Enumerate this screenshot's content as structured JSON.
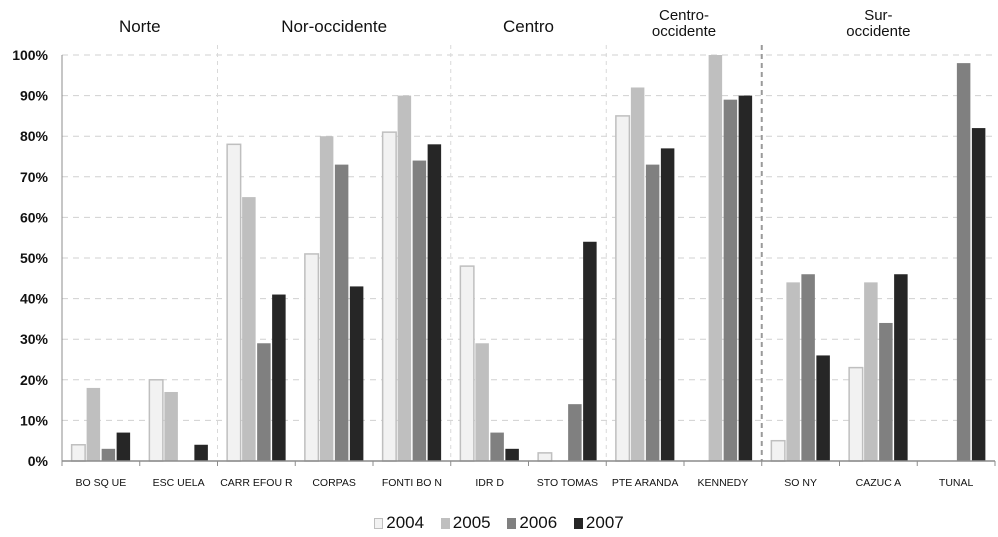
{
  "chart_data": {
    "type": "bar",
    "regions": [
      {
        "label": "Norte",
        "stations": [
          "BOSQUE",
          "ESCUELA"
        ]
      },
      {
        "label": "Nor-occidente",
        "stations": [
          "CARREFOUR",
          "CORPAS",
          "FONTIBON"
        ]
      },
      {
        "label": "Centro",
        "stations": [
          "IDRD",
          "STOTOMAS"
        ]
      },
      {
        "label": "Centro-\noccidente",
        "stations": [
          "PTE ARANDA",
          "KENNEDY"
        ]
      },
      {
        "label": "Sur-\noccidente",
        "stations": [
          "SONY",
          "CAZUCA",
          "TUNAL"
        ]
      }
    ],
    "categories": [
      "BOSQUE",
      "ESCUELA",
      "CARREFOUR",
      "CORPAS",
      "FONTIBON",
      "IDRD",
      "STOTOMAS",
      "PTE ARANDA",
      "KENNEDY",
      "SONY",
      "CAZUCA",
      "TUNAL"
    ],
    "category_labels": [
      "BO SQ UE",
      "ESC UELA",
      "CARR EFOU R",
      "CORPAS",
      "FONTI BO N",
      "IDR D",
      "STO TOMAS",
      "PTE ARANDA",
      "KENNEDY",
      "SO NY",
      "CAZUC A",
      "TUNAL"
    ],
    "series": [
      {
        "name": "2004",
        "color": "#f2f2f2",
        "outline": "#bfbfbf",
        "values": [
          4,
          20,
          78,
          51,
          81,
          48,
          2,
          85,
          0,
          5,
          23,
          0
        ]
      },
      {
        "name": "2005",
        "color": "#bfbfbf",
        "values": [
          18,
          17,
          65,
          80,
          90,
          29,
          0,
          92,
          100,
          44,
          44,
          0
        ]
      },
      {
        "name": "2006",
        "color": "#808080",
        "values": [
          3,
          0,
          29,
          73,
          74,
          7,
          14,
          73,
          89,
          46,
          34,
          98
        ]
      },
      {
        "name": "2007",
        "color": "#262626",
        "values": [
          7,
          4,
          41,
          43,
          78,
          3,
          54,
          77,
          90,
          26,
          46,
          82
        ]
      }
    ],
    "ylim": [
      0,
      100
    ],
    "yticks": [
      "0%",
      "10%",
      "20%",
      "30%",
      "40%",
      "50%",
      "60%",
      "70%",
      "80%",
      "90%",
      "100%"
    ],
    "grid": true,
    "legend_position": "bottom"
  }
}
